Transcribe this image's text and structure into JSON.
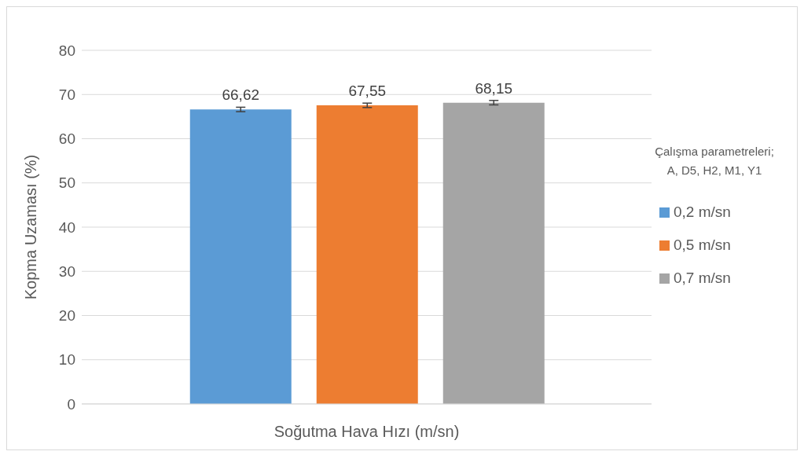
{
  "chart_data": {
    "type": "bar",
    "xlabel": "Soğutma Hava Hızı (m/sn)",
    "ylabel": "Kopma Uzaması (%)",
    "legend_title": "Çalışma parametreleri;\nA, D5, H2, M1, Y1",
    "categories": [
      null
    ],
    "series": [
      {
        "name": "0,2 m/sn",
        "color": "#5b9bd5",
        "values": [
          66.62
        ],
        "errors": [
          0.5
        ],
        "value_labels": [
          "66,62"
        ]
      },
      {
        "name": "0,5 m/sn",
        "color": "#ed7d31",
        "values": [
          67.55
        ],
        "errors": [
          0.5
        ],
        "value_labels": [
          "67,55"
        ]
      },
      {
        "name": "0,7 m/sn",
        "color": "#a5a5a5",
        "values": [
          68.15
        ],
        "errors": [
          0.5
        ],
        "value_labels": [
          "68,15"
        ]
      }
    ],
    "ylim": [
      0,
      80
    ],
    "yticks": [
      0,
      10,
      20,
      30,
      40,
      50,
      60,
      70,
      80
    ],
    "grid": "y",
    "legend": "right"
  }
}
